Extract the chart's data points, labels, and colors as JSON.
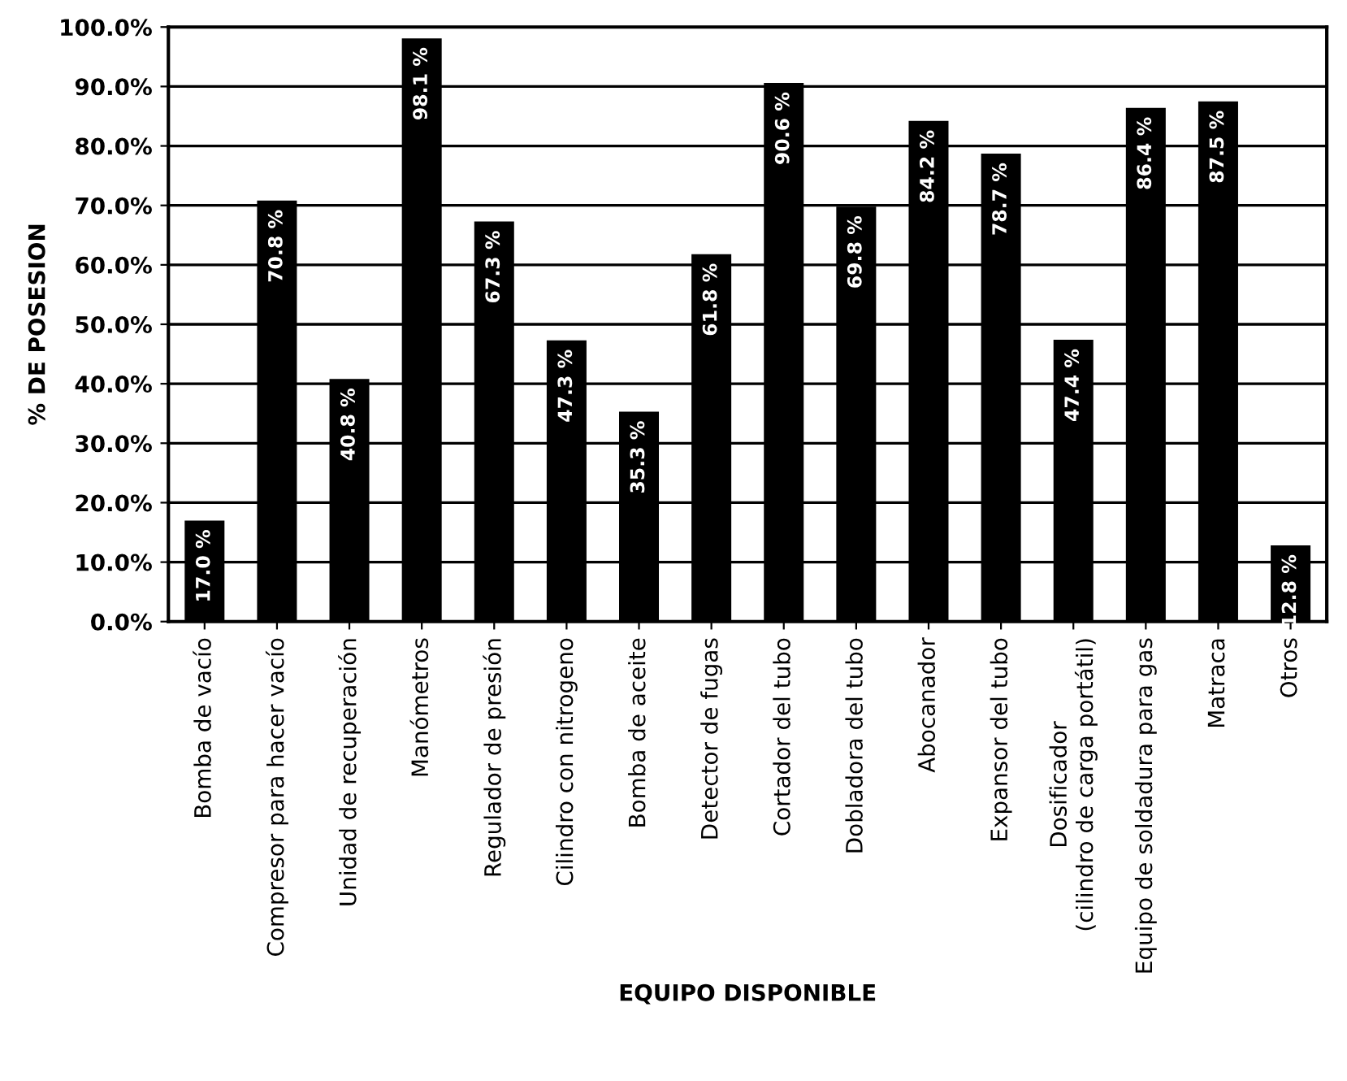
{
  "chart_data": {
    "type": "bar",
    "xlabel": "EQUIPO DISPONIBLE",
    "ylabel": "% DE POSESION",
    "categories": [
      "Bomba de vacío",
      "Compresor para hacer vacío",
      "Unidad de recuperación",
      "Manómetros",
      "Regulador de presión",
      "Cilindro con nitrogeno",
      "Bomba de aceite",
      "Detector de fugas",
      "Cortador del tubo",
      "Dobladora del tubo",
      "Abocanador",
      "Expansor del tubo",
      "Dosificador\n(cilindro de carga portátil)",
      "Equipo de soldadura para gas",
      "Matraca",
      "Otros"
    ],
    "values": [
      17.0,
      70.8,
      40.8,
      98.1,
      67.3,
      47.3,
      35.3,
      61.8,
      90.6,
      69.8,
      84.2,
      78.7,
      47.4,
      86.4,
      87.5,
      12.8
    ],
    "value_labels": [
      "17.0 %",
      "70.8 %",
      "40.8 %",
      "98.1 %",
      "67.3 %",
      "47.3 %",
      "35.3 %",
      "61.8 %",
      "90.6 %",
      "69.8 %",
      "84.2 %",
      "78.7 %",
      "47.4 %",
      "86.4 %",
      "87.5 %",
      "12.8 %"
    ],
    "color": "#000000",
    "ylim": [
      0,
      100
    ],
    "yticks": [
      {
        "value": 0,
        "label": "0.0%"
      },
      {
        "value": 10,
        "label": "10.0%"
      },
      {
        "value": 20,
        "label": "20.0%"
      },
      {
        "value": 30,
        "label": "30.0%"
      },
      {
        "value": 40,
        "label": "40.0%"
      },
      {
        "value": 50,
        "label": "50.0%"
      },
      {
        "value": 60,
        "label": "60.0%"
      },
      {
        "value": 70,
        "label": "70.0%"
      },
      {
        "value": 80,
        "label": "80.0%"
      },
      {
        "value": 90,
        "label": "90.0%"
      },
      {
        "value": 100,
        "label": "100.0%"
      }
    ],
    "grid": "y"
  }
}
